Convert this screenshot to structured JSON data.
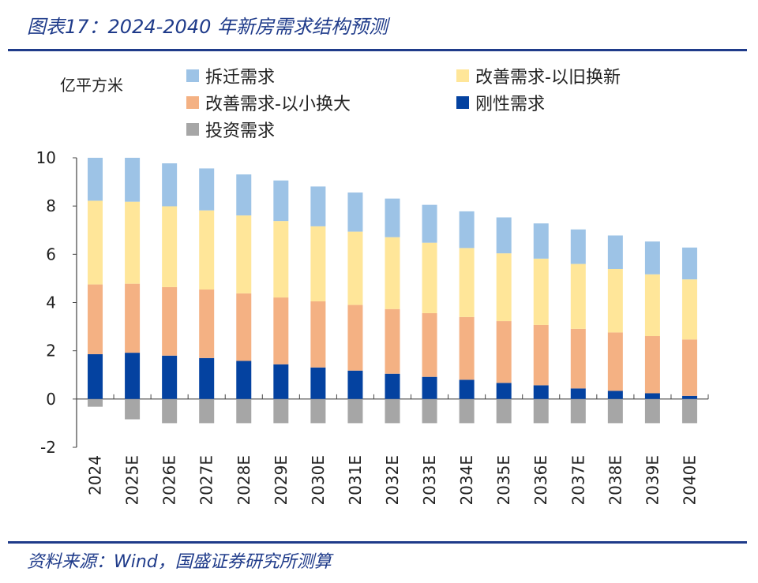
{
  "header": {
    "title": "图表17：2024-2040 年新房需求结构预测"
  },
  "footer": {
    "source": "资料来源：Wind，国盛证券研究所测算"
  },
  "chart_data": {
    "type": "bar",
    "stacked": true,
    "title": "图表17：2024-2040 年新房需求结构预测",
    "ylabel": "亿平方米",
    "xlabel": "",
    "ylim": [
      -2,
      10
    ],
    "yticks": [
      -2,
      0,
      2,
      4,
      6,
      8,
      10
    ],
    "grid": false,
    "legend_position": "top",
    "categories": [
      "2024",
      "2025E",
      "2026E",
      "2027E",
      "2028E",
      "2029E",
      "2030E",
      "2031E",
      "2032E",
      "2033E",
      "2034E",
      "2035E",
      "2036E",
      "2037E",
      "2038E",
      "2039E",
      "2040E"
    ],
    "series": [
      {
        "name": "刚性需求",
        "color": "#0442a0",
        "values": [
          1.86,
          1.92,
          1.8,
          1.7,
          1.58,
          1.44,
          1.31,
          1.18,
          1.05,
          0.92,
          0.8,
          0.67,
          0.57,
          0.44,
          0.34,
          0.24,
          0.13
        ]
      },
      {
        "name": "改善需求-以小换大",
        "color": "#f4b183",
        "values": [
          2.89,
          2.86,
          2.84,
          2.84,
          2.8,
          2.77,
          2.74,
          2.72,
          2.68,
          2.64,
          2.6,
          2.56,
          2.5,
          2.47,
          2.42,
          2.37,
          2.34
        ]
      },
      {
        "name": "改善需求-以旧换新",
        "color": "#ffe699",
        "values": [
          3.47,
          3.4,
          3.35,
          3.28,
          3.23,
          3.17,
          3.11,
          3.04,
          2.98,
          2.92,
          2.86,
          2.81,
          2.75,
          2.69,
          2.63,
          2.56,
          2.49
        ]
      },
      {
        "name": "拆迁需求",
        "color": "#9dc3e6",
        "values": [
          1.78,
          1.82,
          1.78,
          1.74,
          1.7,
          1.68,
          1.65,
          1.62,
          1.6,
          1.57,
          1.52,
          1.49,
          1.46,
          1.43,
          1.39,
          1.36,
          1.32
        ]
      },
      {
        "name": "投资需求",
        "color": "#a6a6a6",
        "values": [
          -0.32,
          -0.84,
          -1.0,
          -1.0,
          -1.0,
          -1.0,
          -1.0,
          -1.0,
          -1.0,
          -1.0,
          -1.0,
          -1.0,
          -1.0,
          -1.0,
          -1.0,
          -1.0,
          -1.0
        ]
      }
    ],
    "legend": [
      "拆迁需求",
      "改善需求-以旧换新",
      "改善需求-以小换大",
      "刚性需求",
      "投资需求"
    ]
  }
}
